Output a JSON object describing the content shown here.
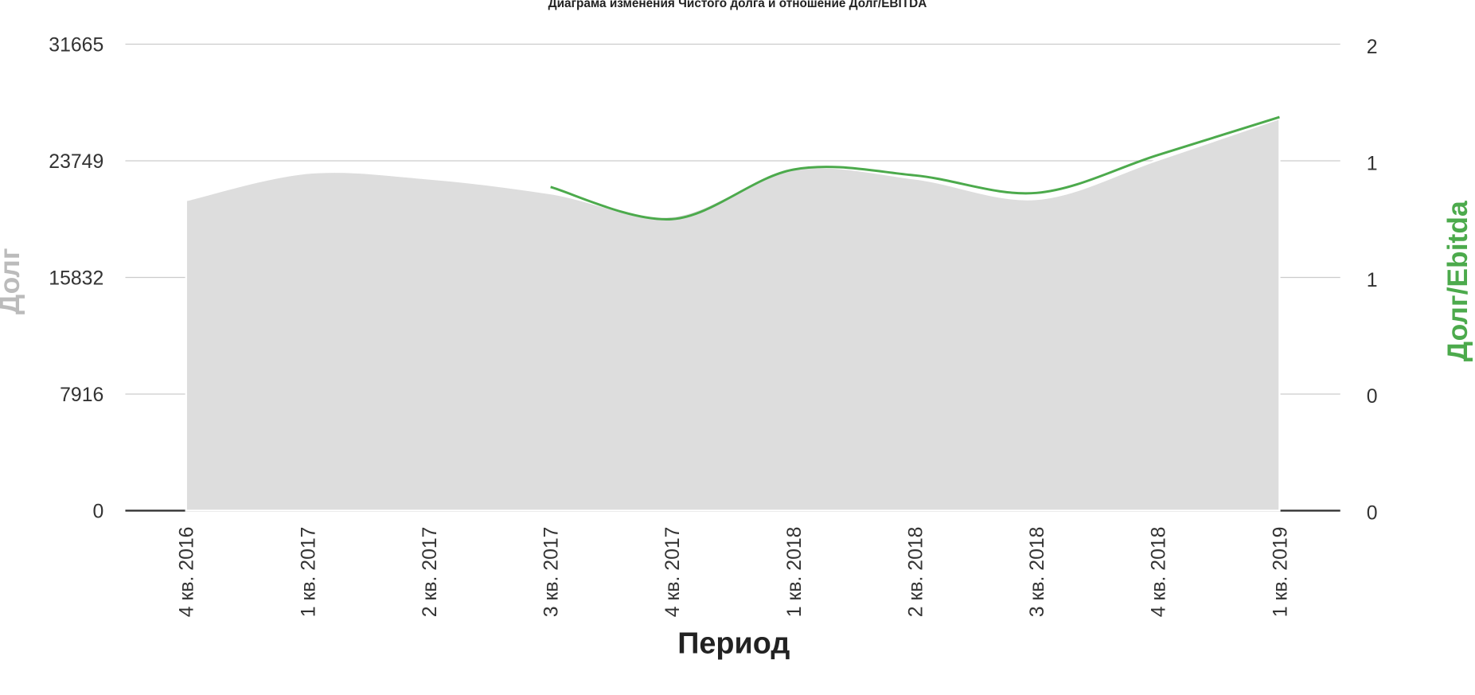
{
  "chart_data": {
    "type": "area-line",
    "title": "Диаграма изменения Чистого долга и отношение Долг/EBITDA",
    "x_label": "Период",
    "y_label": "Долг",
    "y2_label": "Долг/Ebitda",
    "categories": [
      "4 кв. 2016",
      "1 кв. 2017",
      "2 кв. 2017",
      "3 кв. 2017",
      "4 кв. 2017",
      "1 кв. 2018",
      "2 кв. 2018",
      "3 кв. 2018",
      "4 кв. 2018",
      "1 кв. 2019"
    ],
    "series": [
      {
        "name": "Долг",
        "type": "area",
        "color": "#dddddd",
        "values": [
          21067,
          22919,
          22535,
          21534,
          19983,
          23174,
          22535,
          21151,
          23813,
          26621
        ]
      },
      {
        "name": "Долг/Ebitda",
        "type": "line",
        "axis": "y2",
        "color": "#4caa4c",
        "values": [
          null,
          null,
          null,
          1.11,
          1.0,
          1.17,
          1.15,
          1.09,
          1.22,
          1.35
        ]
      }
    ],
    "ylim": [
      0,
      31665
    ],
    "yticks": [
      0,
      7916,
      15832,
      23749,
      31665
    ],
    "y2lim": [
      0,
      1.6
    ],
    "y2ticks": [
      0,
      {
        "value": 0.4,
        "label": "0"
      },
      {
        "value": 0.8,
        "label": "1"
      },
      {
        "value": 1.2,
        "label": "1"
      },
      {
        "value": 1.6,
        "label": "2"
      }
    ],
    "grid": true
  }
}
